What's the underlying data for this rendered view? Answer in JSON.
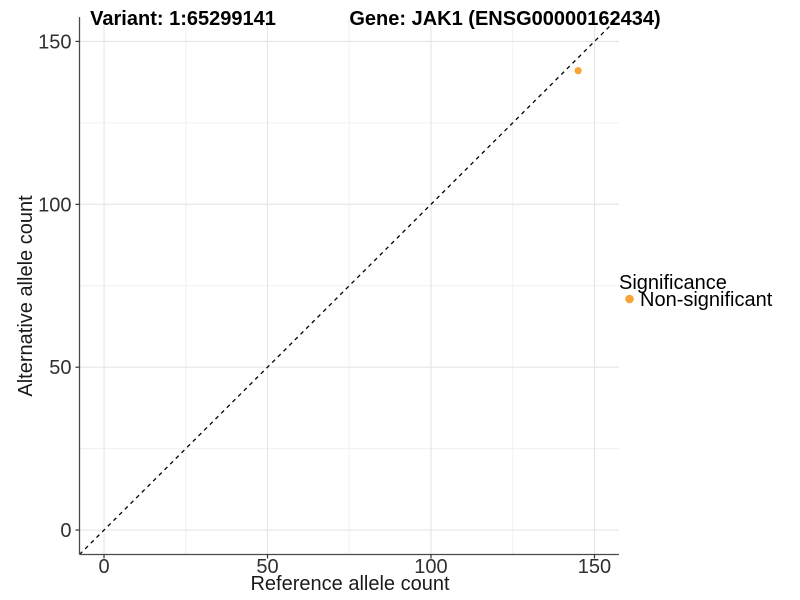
{
  "chart_data": {
    "type": "scatter",
    "title_left": "Variant: 1:65299141",
    "title_right": "Gene: JAK1 (ENSG00000162434)",
    "xlabel": "Reference allele count",
    "ylabel": "Alternative allele count",
    "xlim": [
      -7.5,
      157.5
    ],
    "ylim": [
      -7.5,
      157.5
    ],
    "x_ticks": [
      0,
      50,
      100,
      150
    ],
    "y_ticks": [
      0,
      50,
      100,
      150
    ],
    "x_minor_ticks": [
      25,
      75,
      125
    ],
    "y_minor_ticks": [
      25,
      75,
      125
    ],
    "grid": true,
    "reference_line": {
      "kind": "identity",
      "style": "dashed",
      "color": "#000000"
    },
    "series": [
      {
        "name": "Non-significant",
        "color": "#F9A236",
        "points": [
          {
            "x": 145,
            "y": 141
          }
        ]
      }
    ],
    "legend": {
      "title": "Significance",
      "position": "right",
      "items": [
        {
          "label": "Non-significant",
          "color": "#F9A236"
        }
      ]
    },
    "colors": {
      "grid_major": "#E5E5E5",
      "grid_minor": "#F0F0F0",
      "axis_line": "#4A4A4A",
      "tick_mark": "#333333",
      "point": "#F9A236"
    }
  }
}
